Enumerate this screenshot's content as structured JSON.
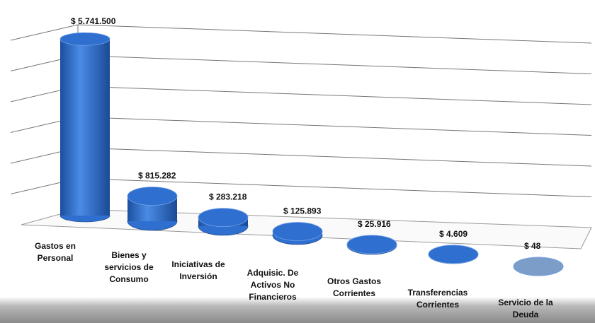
{
  "chart_data": {
    "type": "bar3d",
    "categories": [
      "Gastos en\nPersonal",
      "Bienes y\nservicios de\nConsumo",
      "Iniciativas de\nInversión",
      "Adquisic. De\nActivos No\nFinancieros",
      "Otros Gastos\nCorrientes",
      "Transferencias\nCorrientes",
      "Servicio de la\nDeuda"
    ],
    "values": [
      5741500,
      815282,
      283218,
      125893,
      25916,
      4609,
      48
    ],
    "value_labels": [
      "$ 5.741.500",
      "$ 815.282",
      "$ 283.218",
      "$ 125.893",
      "$ 25.916",
      "$ 4.609",
      "$ 48"
    ],
    "colors": [
      "#2f6fcf",
      "#2f6fcf",
      "#2f6fcf",
      "#2f6fcf",
      "#2f6fcf",
      "#2f6fcf",
      "#7d9dc9"
    ],
    "ylim": [
      0,
      6000000
    ],
    "yticks": [
      0,
      1000000,
      2000000,
      3000000,
      4000000,
      5000000,
      6000000
    ],
    "grid": true
  }
}
